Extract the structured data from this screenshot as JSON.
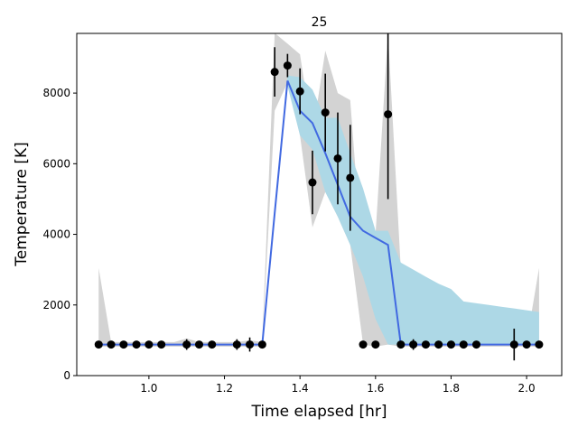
{
  "chart_data": {
    "type": "errorband",
    "title": "25",
    "x_label": "Time elapsed [hr]",
    "y_label": "Temperature [K]",
    "x": [
      0.867,
      0.9,
      0.933,
      0.967,
      1.0,
      1.033,
      1.067,
      1.1,
      1.133,
      1.167,
      1.2,
      1.233,
      1.267,
      1.3,
      1.333,
      1.367,
      1.4,
      1.433,
      1.467,
      1.5,
      1.533,
      1.567,
      1.6,
      1.633,
      1.667,
      1.7,
      1.733,
      1.767,
      1.8,
      1.833,
      1.867,
      1.9,
      1.933,
      1.967,
      2.0,
      2.033
    ],
    "points": {
      "color": "#000000",
      "values": [
        880,
        880,
        880,
        880,
        880,
        880,
        null,
        880,
        880,
        880,
        null,
        880,
        880,
        880,
        8600,
        8780,
        8050,
        5470,
        7450,
        6150,
        5600,
        880,
        880,
        7400,
        880,
        880,
        880,
        880,
        880,
        880,
        880,
        null,
        null,
        880,
        880,
        880
      ],
      "errors": [
        0,
        0,
        0,
        0,
        0,
        0,
        null,
        150,
        0,
        0,
        null,
        150,
        200,
        0,
        700,
        330,
        650,
        900,
        1100,
        1300,
        1500,
        0,
        0,
        2400,
        0,
        150,
        0,
        0,
        100,
        0,
        0,
        null,
        null,
        450,
        0,
        0
      ]
    },
    "line": {
      "color": "#4169e1",
      "values": [
        880,
        880,
        880,
        880,
        880,
        880,
        880,
        880,
        880,
        880,
        880,
        880,
        880,
        880,
        4600,
        8350,
        7500,
        7150,
        6300,
        5400,
        4500,
        4100,
        3900,
        3700,
        880,
        880,
        880,
        880,
        880,
        880,
        880,
        880,
        880,
        880,
        880,
        880
      ]
    },
    "inner_band": {
      "color": "#add8e6",
      "upper": [
        880,
        880,
        880,
        880,
        880,
        880,
        880,
        880,
        880,
        880,
        880,
        880,
        880,
        880,
        4700,
        8500,
        8450,
        8100,
        7300,
        7300,
        6300,
        5300,
        4100,
        4100,
        3200,
        3000,
        2800,
        2600,
        2450,
        2100,
        2050,
        2000,
        1950,
        1900,
        1850,
        1800
      ],
      "lower": [
        880,
        880,
        880,
        880,
        880,
        880,
        880,
        880,
        880,
        880,
        880,
        880,
        880,
        880,
        4500,
        8200,
        6800,
        6400,
        5200,
        4500,
        3700,
        2800,
        1600,
        880,
        880,
        880,
        880,
        880,
        880,
        880,
        880,
        880,
        880,
        880,
        880,
        880
      ]
    },
    "outer_band": {
      "color": "#d3d3d3",
      "upper": [
        3050,
        950,
        950,
        950,
        950,
        950,
        950,
        1050,
        950,
        950,
        950,
        950,
        1000,
        950,
        9700,
        9400,
        9100,
        6800,
        9200,
        8000,
        7800,
        3000,
        4000,
        9700,
        3000,
        950,
        950,
        950,
        950,
        950,
        950,
        950,
        950,
        950,
        950,
        3050
      ],
      "lower": [
        820,
        820,
        820,
        820,
        820,
        820,
        820,
        820,
        820,
        820,
        820,
        820,
        820,
        820,
        7500,
        8300,
        6800,
        4200,
        5200,
        4500,
        3700,
        880,
        820,
        880,
        820,
        820,
        820,
        820,
        820,
        820,
        820,
        820,
        820,
        820,
        820,
        820
      ]
    },
    "xlim": [
      0.809,
      2.093
    ],
    "ylim": [
      0,
      9690
    ],
    "xticks": [
      {
        "value": 1.0,
        "label": "1.0"
      },
      {
        "value": 1.2,
        "label": "1.2"
      },
      {
        "value": 1.4,
        "label": "1.4"
      },
      {
        "value": 1.6,
        "label": "1.6"
      },
      {
        "value": 1.8,
        "label": "1.8"
      },
      {
        "value": 2.0,
        "label": "2.0"
      }
    ],
    "yticks": [
      0,
      2000,
      4000,
      6000,
      8000
    ]
  }
}
